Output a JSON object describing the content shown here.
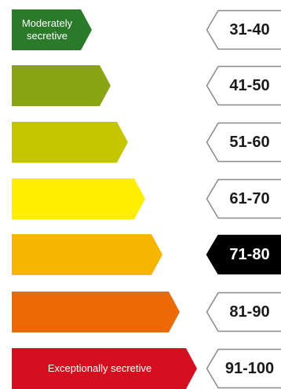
{
  "bands": [
    {
      "label": "Moderately\nsecretive",
      "color": "#2a7a2a"
    },
    {
      "label": "",
      "color": "#8aa414"
    },
    {
      "label": "",
      "color": "#c4c600"
    },
    {
      "label": "",
      "color": "#ffee00"
    },
    {
      "label": "",
      "color": "#f7b500"
    },
    {
      "label": "",
      "color": "#ec6a06"
    },
    {
      "label": "Exceptionally secretive",
      "color": "#d40f1f"
    }
  ],
  "ranges": [
    "31-40",
    "41-50",
    "51-60",
    "61-70",
    "71-80",
    "81-90",
    "91-100"
  ],
  "active_range": "71-80",
  "colors": {
    "active_fill": "#000000",
    "outline": "#8a8a8a",
    "label_dark": "#1a1a1a"
  }
}
